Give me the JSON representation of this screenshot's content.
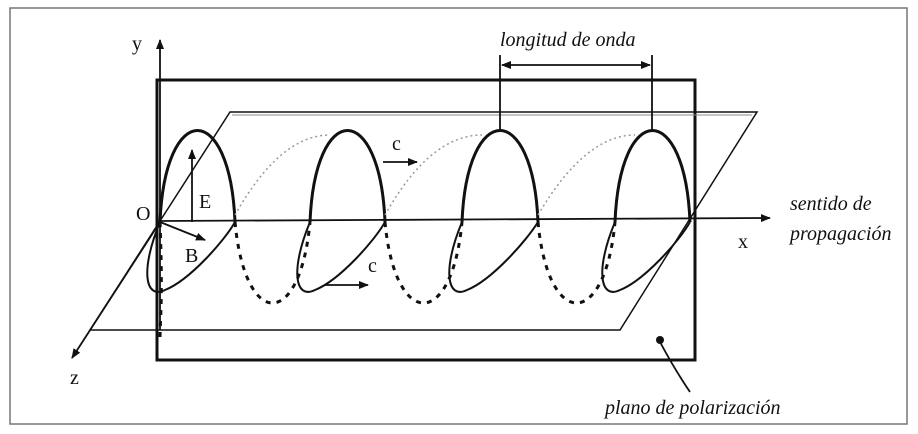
{
  "labels": {
    "y_axis": "y",
    "origin": "O",
    "e_field": "E",
    "b_field": "B",
    "speed_top": "c",
    "speed_bottom": "c",
    "x_axis": "x",
    "z_axis": "z",
    "wavelength": "longitud de onda",
    "direction_line1": "sentido de",
    "direction_line2": "propagación",
    "plane": "plano de polarización"
  }
}
